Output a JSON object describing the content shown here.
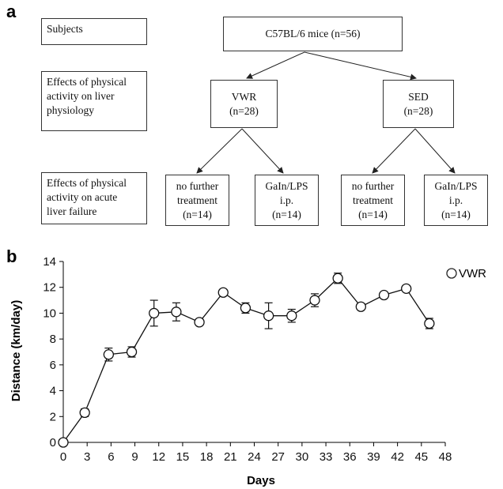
{
  "panel_a": {
    "label": "a",
    "row_labels": [
      [
        "Subjects"
      ],
      [
        "Effects of physical",
        "activity on liver",
        "physiology"
      ],
      [
        "Effects of physical",
        "activity on acute",
        "liver failure"
      ]
    ],
    "root": [
      "C57BL/6 mice (n=56)"
    ],
    "groups": [
      [
        "VWR",
        "(n=28)"
      ],
      [
        "SED",
        "(n=28)"
      ]
    ],
    "leaves": [
      [
        "no further",
        "treatment",
        "(n=14)"
      ],
      [
        "GaIn/LPS",
        "i.p.",
        "(n=14)"
      ],
      [
        "no further",
        "treatment",
        "(n=14)"
      ],
      [
        "GaIn/LPS",
        "i.p.",
        "(n=14)"
      ]
    ]
  },
  "panel_b": {
    "label": "b"
  },
  "chart_data": {
    "type": "line",
    "xlabel": "Days",
    "ylabel": "Distance (km/day)",
    "xlim": [
      0,
      48
    ],
    "ylim": [
      0,
      14
    ],
    "xticks": [
      0,
      3,
      6,
      9,
      12,
      15,
      18,
      21,
      24,
      27,
      30,
      33,
      36,
      39,
      42,
      45,
      48
    ],
    "yticks": [
      0,
      2,
      4,
      6,
      8,
      10,
      12,
      14
    ],
    "legend_position": "top-right",
    "series": [
      {
        "name": "VWR",
        "marker": "open-circle",
        "x": [
          0,
          2.7,
          5.7,
          8.6,
          11.4,
          14.2,
          17.1,
          20.1,
          22.9,
          25.8,
          28.7,
          31.6,
          34.5,
          37.4,
          40.3,
          43.1,
          46.0
        ],
        "y": [
          0,
          2.3,
          6.8,
          7.0,
          10.0,
          10.1,
          9.3,
          11.6,
          10.4,
          9.8,
          9.8,
          11.0,
          12.7,
          10.5,
          11.4,
          11.9,
          9.2
        ],
        "error": [
          0,
          0.3,
          0.5,
          0.4,
          1.0,
          0.7,
          0.2,
          0.2,
          0.4,
          1.0,
          0.5,
          0.5,
          0.4,
          0.2,
          0.2,
          0.2,
          0.4
        ]
      }
    ]
  }
}
